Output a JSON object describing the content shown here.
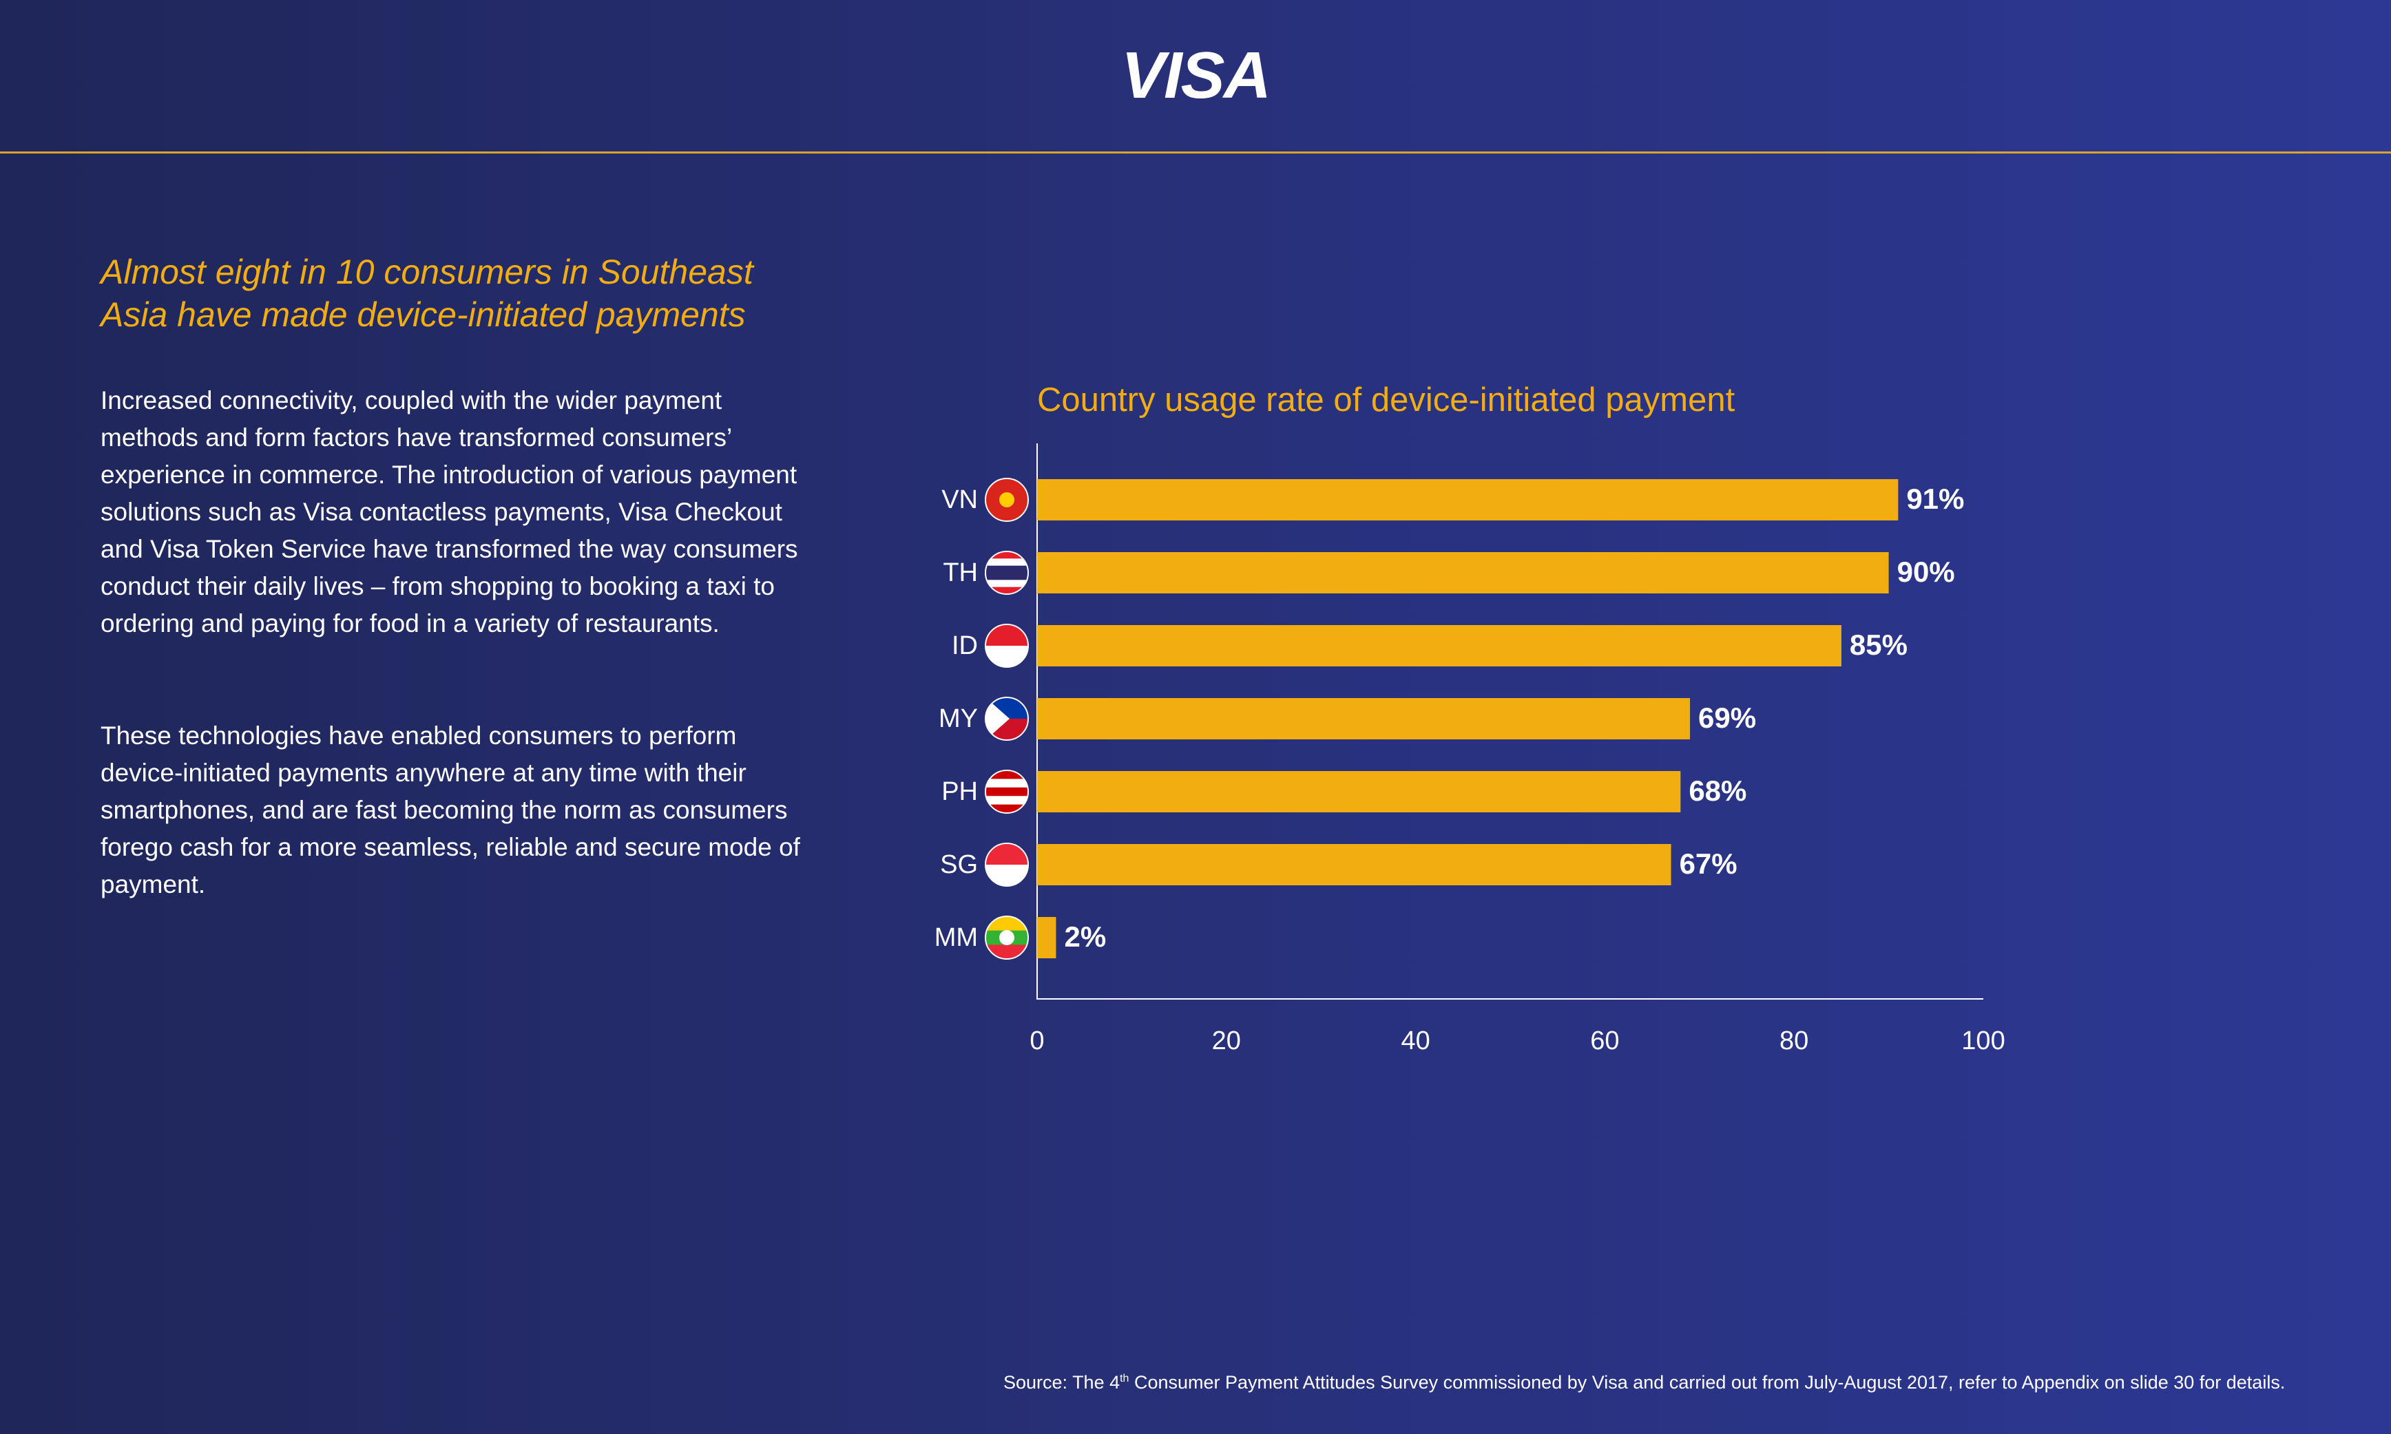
{
  "logo": "VISA",
  "heading": "Almost eight in 10 consumers in Southeast Asia have made device-initiated payments",
  "paragraphs": [
    "Increased connectivity, coupled with the wider payment methods and form factors have transformed consumers’ experience in commerce. The introduction of various payment solutions such as Visa contactless payments, Visa Checkout and Visa Token Service have transformed the way consumers conduct their daily lives – from shopping to booking a taxi to ordering and paying for food in a variety of restaurants.",
    "These technologies have enabled consumers to perform device-initiated payments anywhere at any time with their smartphones, and are fast becoming the norm as consumers forego cash for a more seamless, reliable and secure mode of payment."
  ],
  "source": {
    "before": "Source: The 4",
    "sup": "th",
    "after": " Consumer Payment Attitudes Survey commissioned by Visa and carried out from July-August 2017, refer to Appendix on slide 30 for details."
  },
  "chart_data": {
    "type": "bar",
    "orientation": "horizontal",
    "title": "Country usage rate of device-initiated payment",
    "categories": [
      "VN",
      "TH",
      "ID",
      "MY",
      "PH",
      "SG",
      "MM"
    ],
    "values": [
      91,
      90,
      85,
      69,
      68,
      67,
      2
    ],
    "value_labels": [
      "91%",
      "90%",
      "85%",
      "69%",
      "68%",
      "67%",
      "2%"
    ],
    "color": "#f2ad10",
    "xlim": [
      0,
      100
    ],
    "xticks": [
      0,
      20,
      40,
      60,
      80,
      100
    ],
    "grid": false
  }
}
